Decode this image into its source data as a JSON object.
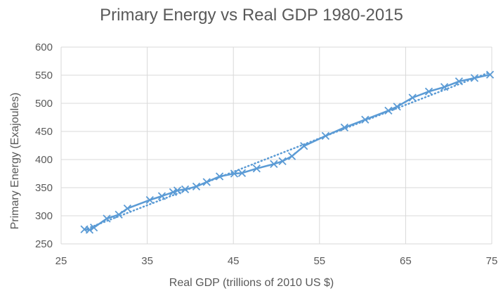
{
  "chart_data": {
    "type": "scatter",
    "title": "Primary Energy vs Real GDP 1980-2015",
    "xlabel": "Real GDP (trillions of 2010 US $)",
    "ylabel": "Primary Energy (Exajoules)",
    "xlim": [
      25,
      75
    ],
    "ylim": [
      250,
      600
    ],
    "xticks": [
      25,
      35,
      45,
      55,
      65,
      75
    ],
    "yticks": [
      250,
      300,
      350,
      400,
      450,
      500,
      550,
      600
    ],
    "grid": true,
    "legend": "none",
    "color": "#5B9BD5",
    "marker": "x",
    "trendline": "linear (dotted)",
    "x": [
      27.7,
      28.3,
      28.8,
      30.3,
      31.7,
      32.7,
      35.3,
      36.7,
      38.0,
      38.5,
      39.4,
      40.7,
      41.9,
      43.4,
      45.1,
      46.0,
      47.7,
      49.7,
      50.7,
      51.8,
      53.2,
      55.7,
      57.9,
      60.3,
      63.0,
      64.0,
      65.8,
      67.7,
      69.5,
      71.2,
      73.0,
      74.8
    ],
    "y": [
      276,
      275,
      279,
      295,
      302,
      313,
      328,
      335,
      342,
      345,
      347,
      352,
      360,
      370,
      375,
      376,
      384,
      392,
      397,
      406,
      424,
      442,
      457,
      471,
      487,
      494,
      510,
      521,
      529,
      539,
      545,
      551
    ]
  }
}
